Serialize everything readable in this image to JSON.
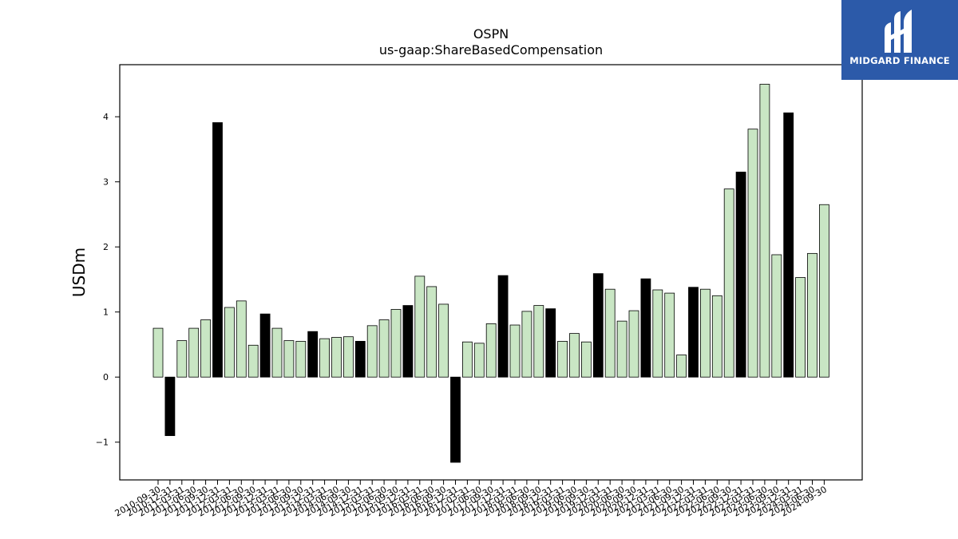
{
  "brand": {
    "name": "MIDGARD FINANCE",
    "color": "#2c5aa9"
  },
  "chart_data": {
    "type": "bar",
    "title": "OSPN",
    "subtitle": "us-gaap:ShareBasedCompensation",
    "xlabel": "",
    "ylabel": "USDm",
    "ylim": [
      -1.58,
      4.8
    ],
    "yticks": [
      -1,
      0,
      1,
      2,
      3,
      4
    ],
    "grid": false,
    "colors": {
      "quarterly": "#c9e6c4",
      "annual": "#000000",
      "edge": "#000000"
    },
    "categories": [
      "2010-09-30",
      "2010-12-31",
      "2011-03-31",
      "2011-06-30",
      "2011-09-30",
      "2011-12-31",
      "2012-03-31",
      "2012-06-30",
      "2012-09-30",
      "2012-12-31",
      "2013-03-31",
      "2013-06-30",
      "2013-09-30",
      "2013-12-31",
      "2014-03-31",
      "2014-06-30",
      "2014-09-30",
      "2014-12-31",
      "2015-03-31",
      "2015-06-30",
      "2015-09-30",
      "2015-12-31",
      "2016-03-31",
      "2016-06-30",
      "2016-09-30",
      "2016-12-31",
      "2017-03-31",
      "2017-06-30",
      "2017-09-30",
      "2017-12-31",
      "2018-03-31",
      "2018-06-30",
      "2018-09-30",
      "2018-12-31",
      "2019-03-31",
      "2019-06-30",
      "2019-09-30",
      "2019-12-31",
      "2020-03-31",
      "2020-06-30",
      "2020-09-30",
      "2020-12-31",
      "2021-03-31",
      "2021-06-30",
      "2021-09-30",
      "2021-12-31",
      "2022-03-31",
      "2022-06-30",
      "2022-09-30",
      "2022-12-31",
      "2023-03-31",
      "2023-06-30",
      "2023-09-30",
      "2023-12-31",
      "2024-03-31",
      "2024-06-30",
      "2024-09-30"
    ],
    "values": [
      0.75,
      -0.9,
      0.56,
      0.75,
      0.88,
      3.91,
      1.07,
      1.17,
      0.49,
      0.97,
      0.75,
      0.56,
      0.55,
      0.7,
      0.59,
      0.61,
      0.62,
      0.55,
      0.79,
      0.88,
      1.04,
      1.1,
      1.55,
      1.39,
      1.12,
      -1.31,
      0.54,
      0.52,
      0.82,
      1.56,
      0.8,
      1.01,
      1.1,
      1.05,
      0.55,
      0.67,
      0.54,
      1.59,
      1.35,
      0.86,
      1.02,
      1.51,
      1.34,
      1.29,
      0.34,
      1.38,
      1.35,
      1.25,
      2.89,
      3.15,
      3.81,
      4.5,
      1.88,
      4.06,
      1.53,
      1.9,
      2.65
    ],
    "annual": [
      false,
      true,
      false,
      false,
      false,
      true,
      false,
      false,
      false,
      true,
      false,
      false,
      false,
      true,
      false,
      false,
      false,
      true,
      false,
      false,
      false,
      true,
      false,
      false,
      false,
      true,
      false,
      false,
      false,
      true,
      false,
      false,
      false,
      true,
      false,
      false,
      false,
      true,
      false,
      false,
      false,
      true,
      false,
      false,
      false,
      true,
      false,
      false,
      false,
      true,
      false,
      false,
      false,
      true,
      false,
      false,
      false
    ]
  }
}
